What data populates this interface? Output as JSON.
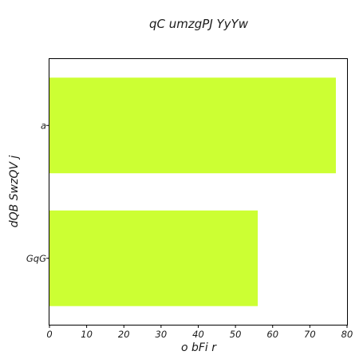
{
  "chart_data": {
    "type": "bar",
    "orientation": "horizontal",
    "title": "qC umzgPJ YyYw",
    "xlabel": "o bFi r",
    "ylabel": "dQB SwzQV j",
    "categories": [
      "a",
      "GqG"
    ],
    "values": [
      77,
      56
    ],
    "xlim": [
      0,
      80
    ],
    "xticks": [
      0,
      10,
      20,
      30,
      40,
      50,
      60,
      70,
      80
    ],
    "grid": false,
    "bar_color": "#ccff33"
  }
}
